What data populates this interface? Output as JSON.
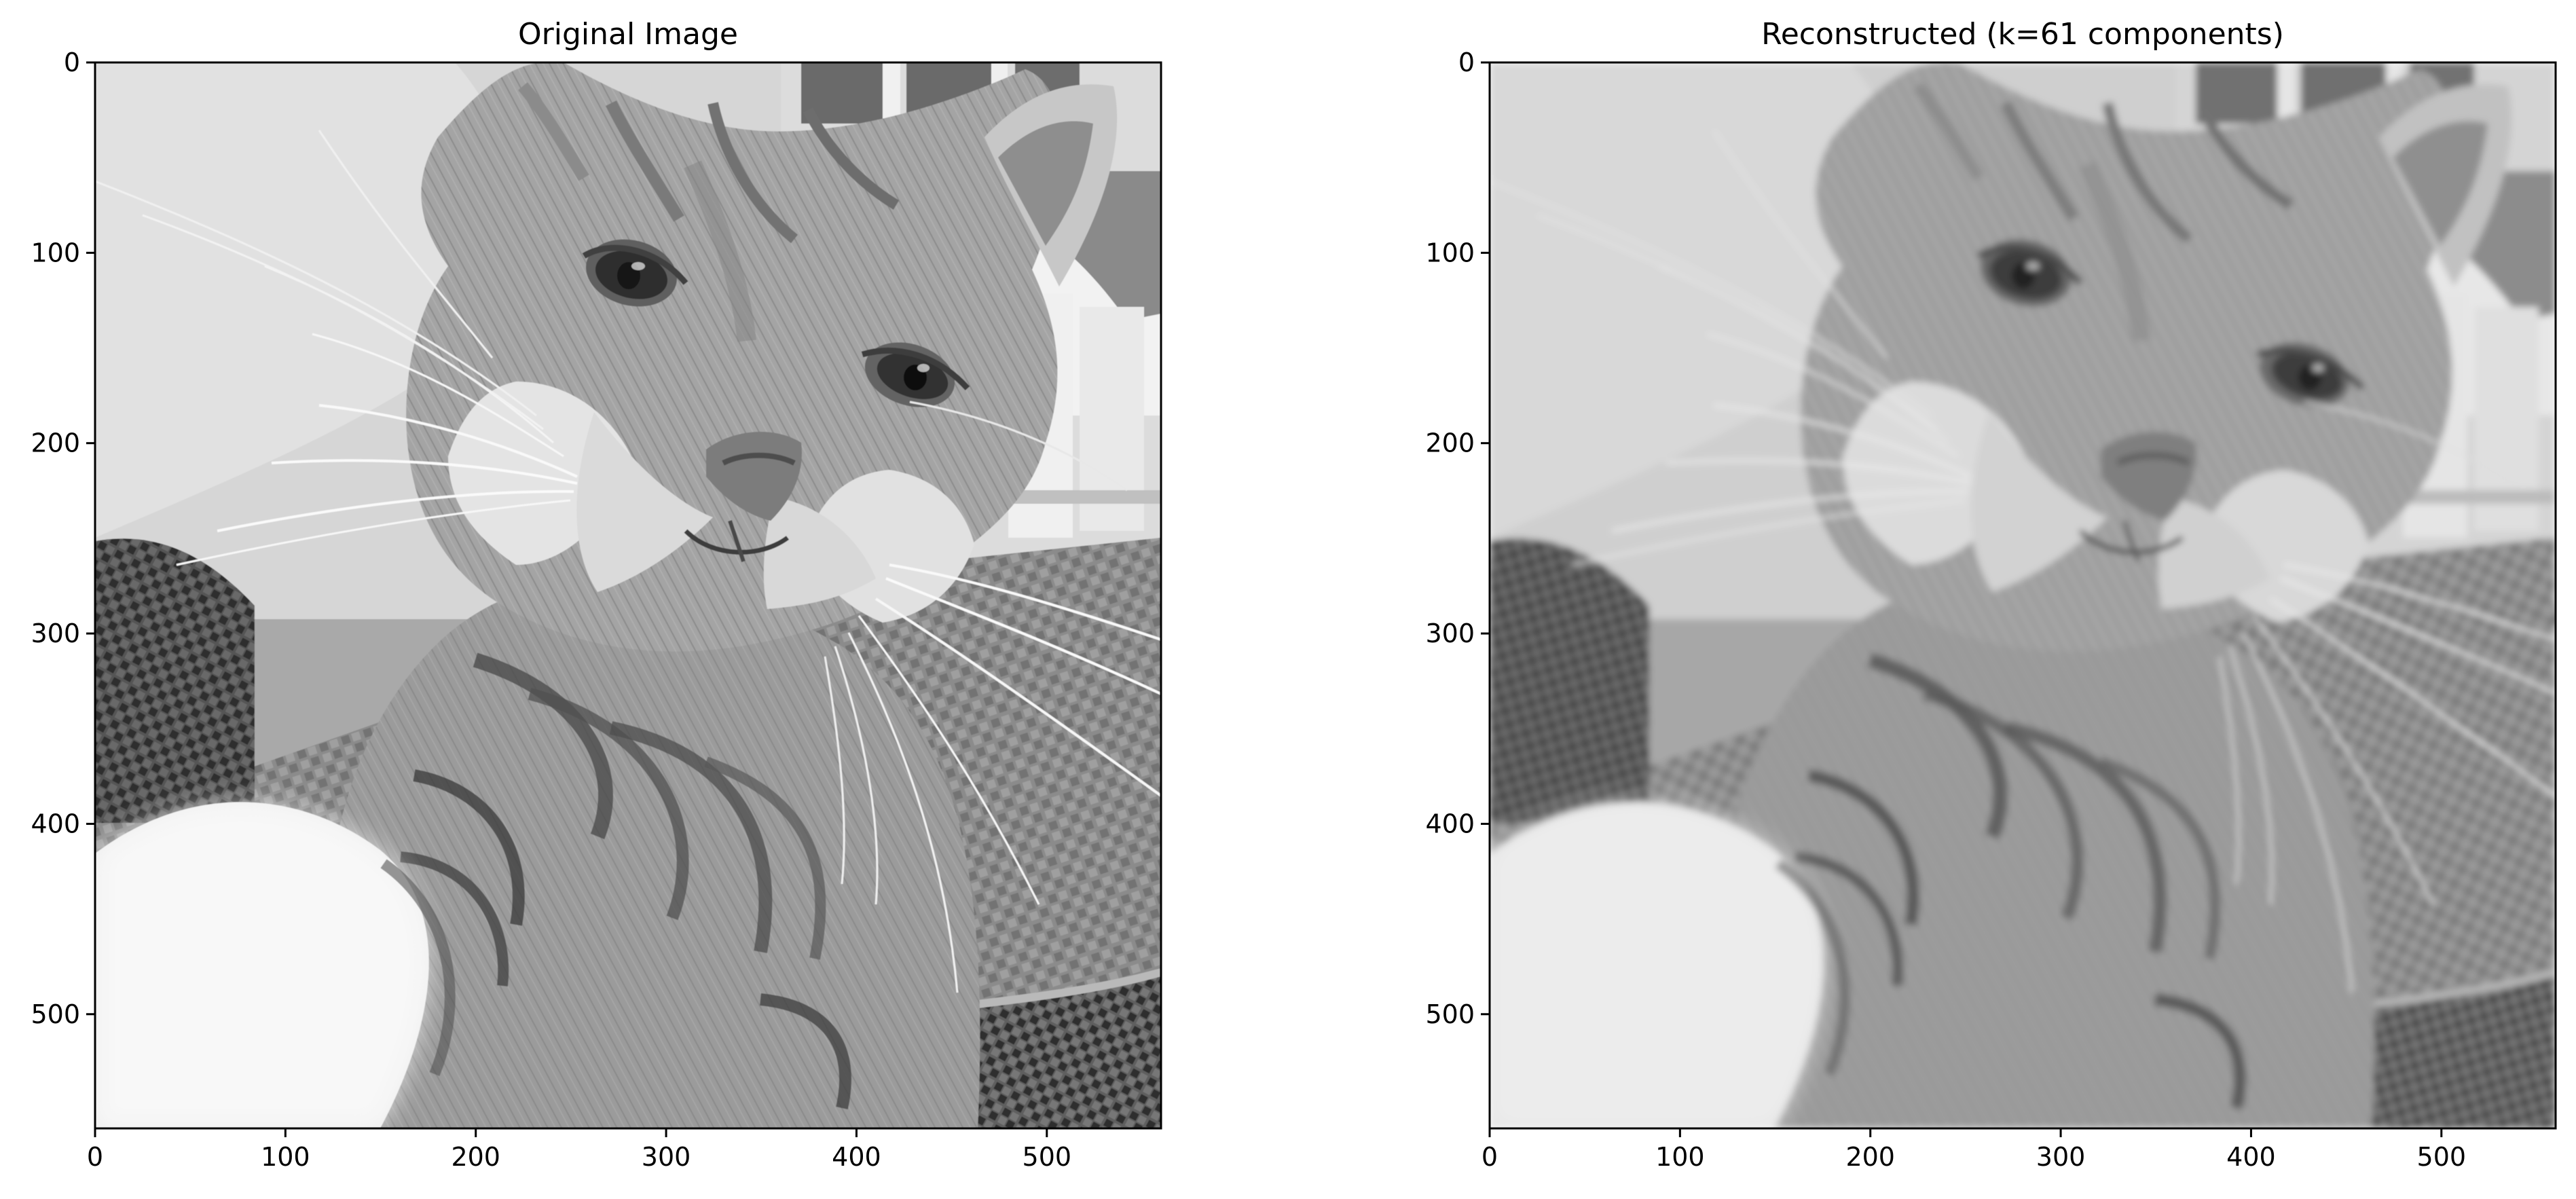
{
  "figure": {
    "background": "#ffffff",
    "axes_color": "#000000",
    "panels": [
      {
        "id": "original",
        "title": "Original Image",
        "image_kind": "grayscale photograph of a tabby cat taking a selfie",
        "image_tone": "sharp",
        "ylim": [
          0,
          560
        ],
        "xlim": [
          0,
          560
        ],
        "x_ticks": [
          {
            "value": 0,
            "label": "0"
          },
          {
            "value": 100,
            "label": "100"
          },
          {
            "value": 200,
            "label": "200"
          },
          {
            "value": 300,
            "label": "300"
          },
          {
            "value": 400,
            "label": "400"
          },
          {
            "value": 500,
            "label": "500"
          }
        ],
        "y_ticks": [
          {
            "value": 0,
            "label": "0"
          },
          {
            "value": 100,
            "label": "100"
          },
          {
            "value": 200,
            "label": "200"
          },
          {
            "value": 300,
            "label": "300"
          },
          {
            "value": 400,
            "label": "400"
          },
          {
            "value": 500,
            "label": "500"
          }
        ]
      },
      {
        "id": "reconstructed",
        "title": "Reconstructed (k=61 components)",
        "image_kind": "grayscale low-rank reconstruction of the same cat photograph",
        "image_tone": "soft",
        "ylim": [
          0,
          560
        ],
        "xlim": [
          0,
          560
        ],
        "x_ticks": [
          {
            "value": 0,
            "label": "0"
          },
          {
            "value": 100,
            "label": "100"
          },
          {
            "value": 200,
            "label": "200"
          },
          {
            "value": 300,
            "label": "300"
          },
          {
            "value": 400,
            "label": "400"
          },
          {
            "value": 500,
            "label": "500"
          }
        ],
        "y_ticks": [
          {
            "value": 0,
            "label": "0"
          },
          {
            "value": 100,
            "label": "100"
          },
          {
            "value": 200,
            "label": "200"
          },
          {
            "value": 300,
            "label": "300"
          },
          {
            "value": 400,
            "label": "400"
          },
          {
            "value": 500,
            "label": "500"
          }
        ]
      }
    ]
  }
}
